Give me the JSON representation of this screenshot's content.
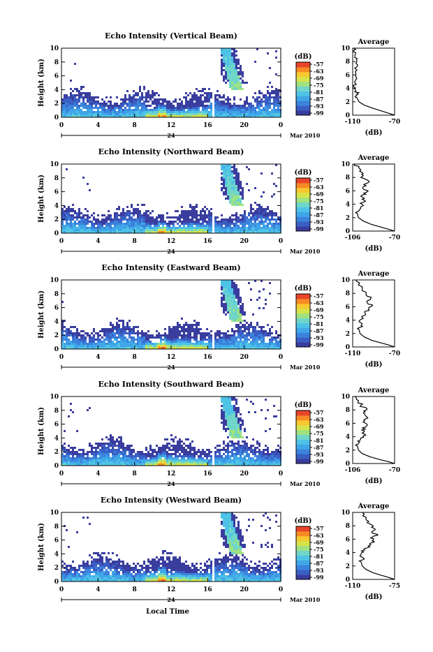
{
  "x_axis_title": "Local Time",
  "date_label": "Mar 2010",
  "day_label": "24",
  "y_axis_title": "Height (km)",
  "avg_title": "Average",
  "avg_xlabel": "(dB)",
  "colorbar_title": "(dB)",
  "colorbar_ticks": [
    "-57",
    "-63",
    "-69",
    "-75",
    "-81",
    "-87",
    "-93",
    "-99"
  ],
  "colors": {
    "scale": [
      "#3a3d9e",
      "#3a5ec4",
      "#3b83dd",
      "#3fa6e8",
      "#4fc3e6",
      "#6fd6c9",
      "#9fe27f",
      "#d7e34a",
      "#f8c830",
      "#f78a24",
      "#e8452a"
    ]
  },
  "chart_data": [
    {
      "type": "heatmap",
      "title": "Echo Intensity (Vertical Beam)",
      "xlabel": "",
      "ylabel": "Height (km)",
      "x_ticks": [
        "0",
        "4",
        "8",
        "12",
        "16",
        "20",
        "0"
      ],
      "y_ticks": [
        "0",
        "2",
        "4",
        "6",
        "8",
        "10"
      ],
      "xlim": [
        0,
        24
      ],
      "ylim": [
        0,
        10
      ],
      "colorbar": {
        "min": -99,
        "max": -57,
        "ticks": [
          -57,
          -63,
          -69,
          -75,
          -81,
          -87,
          -93,
          -99
        ]
      },
      "average_profile": {
        "xlim": [
          -110,
          -70
        ],
        "x_ticks": [
          "-110",
          "-70"
        ],
        "points": [
          [
            -70,
            0
          ],
          [
            -76,
            0.3
          ],
          [
            -82,
            0.6
          ],
          [
            -90,
            1
          ],
          [
            -99,
            1.5
          ],
          [
            -104,
            2
          ],
          [
            -106,
            2.6
          ],
          [
            -105,
            3.1
          ],
          [
            -107,
            3.6
          ],
          [
            -109,
            4.2
          ],
          [
            -108,
            5
          ],
          [
            -107,
            6
          ],
          [
            -108,
            7
          ],
          [
            -106,
            8
          ],
          [
            -108,
            8.6
          ],
          [
            -107,
            9.3
          ],
          [
            -109,
            10
          ]
        ]
      }
    },
    {
      "type": "heatmap",
      "title": "Echo Intensity (Northward Beam)",
      "xlabel": "",
      "ylabel": "Height (km)",
      "x_ticks": [
        "0",
        "4",
        "8",
        "12",
        "16",
        "20",
        "0"
      ],
      "y_ticks": [
        "0",
        "2",
        "4",
        "6",
        "8",
        "10"
      ],
      "xlim": [
        0,
        24
      ],
      "ylim": [
        0,
        10
      ],
      "colorbar": {
        "min": -99,
        "max": -57,
        "ticks": [
          -57,
          -63,
          -69,
          -75,
          -81,
          -87,
          -93,
          -99
        ]
      },
      "average_profile": {
        "xlim": [
          -106,
          -70
        ],
        "x_ticks": [
          "-106",
          "-70"
        ],
        "points": [
          [
            -70,
            0
          ],
          [
            -76,
            0.3
          ],
          [
            -82,
            0.6
          ],
          [
            -90,
            1
          ],
          [
            -97,
            1.5
          ],
          [
            -101,
            2
          ],
          [
            -102,
            2.6
          ],
          [
            -100,
            3.2
          ],
          [
            -98,
            4
          ],
          [
            -96,
            4.6
          ],
          [
            -99,
            5.2
          ],
          [
            -94,
            5.8
          ],
          [
            -97,
            6.6
          ],
          [
            -92,
            7.3
          ],
          [
            -99,
            8
          ],
          [
            -97,
            8.6
          ],
          [
            -100,
            9.3
          ],
          [
            -104,
            10
          ]
        ]
      }
    },
    {
      "type": "heatmap",
      "title": "Echo Intensity (Eastward Beam)",
      "xlabel": "",
      "ylabel": "Height (km)",
      "x_ticks": [
        "0",
        "4",
        "8",
        "12",
        "16",
        "20",
        "0"
      ],
      "y_ticks": [
        "0",
        "2",
        "4",
        "6",
        "8",
        "10"
      ],
      "xlim": [
        0,
        24
      ],
      "ylim": [
        0,
        10
      ],
      "colorbar": {
        "min": -99,
        "max": -57,
        "ticks": [
          -57,
          -63,
          -69,
          -75,
          -81,
          -87,
          -93,
          -99
        ]
      },
      "average_profile": {
        "xlim": [
          -110,
          -70
        ],
        "x_ticks": [
          "-110",
          "-70"
        ],
        "points": [
          [
            -70,
            0
          ],
          [
            -76,
            0.3
          ],
          [
            -83,
            0.6
          ],
          [
            -92,
            1
          ],
          [
            -99,
            1.5
          ],
          [
            -103,
            2
          ],
          [
            -104,
            2.6
          ],
          [
            -102,
            3.2
          ],
          [
            -104,
            3.8
          ],
          [
            -101,
            4.4
          ],
          [
            -98,
            5
          ],
          [
            -95,
            5.6
          ],
          [
            -91,
            6.2
          ],
          [
            -96,
            6.6
          ],
          [
            -93,
            7.2
          ],
          [
            -97,
            8
          ],
          [
            -101,
            8.8
          ],
          [
            -104,
            9.4
          ],
          [
            -107,
            10
          ]
        ]
      }
    },
    {
      "type": "heatmap",
      "title": "Echo Intensity (Southward Beam)",
      "xlabel": "",
      "ylabel": "Height (km)",
      "x_ticks": [
        "0",
        "4",
        "8",
        "12",
        "16",
        "20",
        "0"
      ],
      "y_ticks": [
        "0",
        "2",
        "4",
        "6",
        "8",
        "10"
      ],
      "xlim": [
        0,
        24
      ],
      "ylim": [
        0,
        10
      ],
      "colorbar": {
        "min": -99,
        "max": -57,
        "ticks": [
          -57,
          -63,
          -69,
          -75,
          -81,
          -87,
          -93,
          -99
        ]
      },
      "average_profile": {
        "xlim": [
          -106,
          -70
        ],
        "x_ticks": [
          "-106",
          "-70"
        ],
        "points": [
          [
            -70,
            0
          ],
          [
            -76,
            0.3
          ],
          [
            -83,
            0.6
          ],
          [
            -91,
            1
          ],
          [
            -98,
            1.5
          ],
          [
            -101,
            2
          ],
          [
            -102,
            2.6
          ],
          [
            -100,
            3.2
          ],
          [
            -99,
            3.8
          ],
          [
            -96,
            4.4
          ],
          [
            -98,
            5
          ],
          [
            -94,
            5.6
          ],
          [
            -97,
            6.2
          ],
          [
            -93,
            6.8
          ],
          [
            -96,
            7.4
          ],
          [
            -94,
            8
          ],
          [
            -99,
            8.7
          ],
          [
            -101,
            9.4
          ],
          [
            -104,
            10
          ]
        ]
      }
    },
    {
      "type": "heatmap",
      "title": "Echo Intensity (Westward Beam)",
      "xlabel": "Local Time",
      "ylabel": "Height (km)",
      "x_ticks": [
        "0",
        "4",
        "8",
        "12",
        "16",
        "20",
        "0"
      ],
      "y_ticks": [
        "0",
        "2",
        "4",
        "6",
        "8",
        "10"
      ],
      "xlim": [
        0,
        24
      ],
      "ylim": [
        0,
        10
      ],
      "colorbar": {
        "min": -99,
        "max": -57,
        "ticks": [
          -57,
          -63,
          -69,
          -75,
          -81,
          -87,
          -93,
          -99
        ]
      },
      "average_profile": {
        "xlim": [
          -110,
          -75
        ],
        "x_ticks": [
          "-110",
          "-75"
        ],
        "points": [
          [
            -75,
            0
          ],
          [
            -80,
            0.3
          ],
          [
            -86,
            0.6
          ],
          [
            -93,
            1
          ],
          [
            -99,
            1.5
          ],
          [
            -102,
            2
          ],
          [
            -103,
            2.6
          ],
          [
            -101,
            3.2
          ],
          [
            -103,
            3.8
          ],
          [
            -100,
            4.4
          ],
          [
            -97,
            5
          ],
          [
            -92,
            5.6
          ],
          [
            -95,
            6.2
          ],
          [
            -89,
            6.6
          ],
          [
            -94,
            7
          ],
          [
            -92,
            7.6
          ],
          [
            -96,
            8.3
          ],
          [
            -99,
            9
          ],
          [
            -102,
            10
          ]
        ]
      }
    }
  ]
}
